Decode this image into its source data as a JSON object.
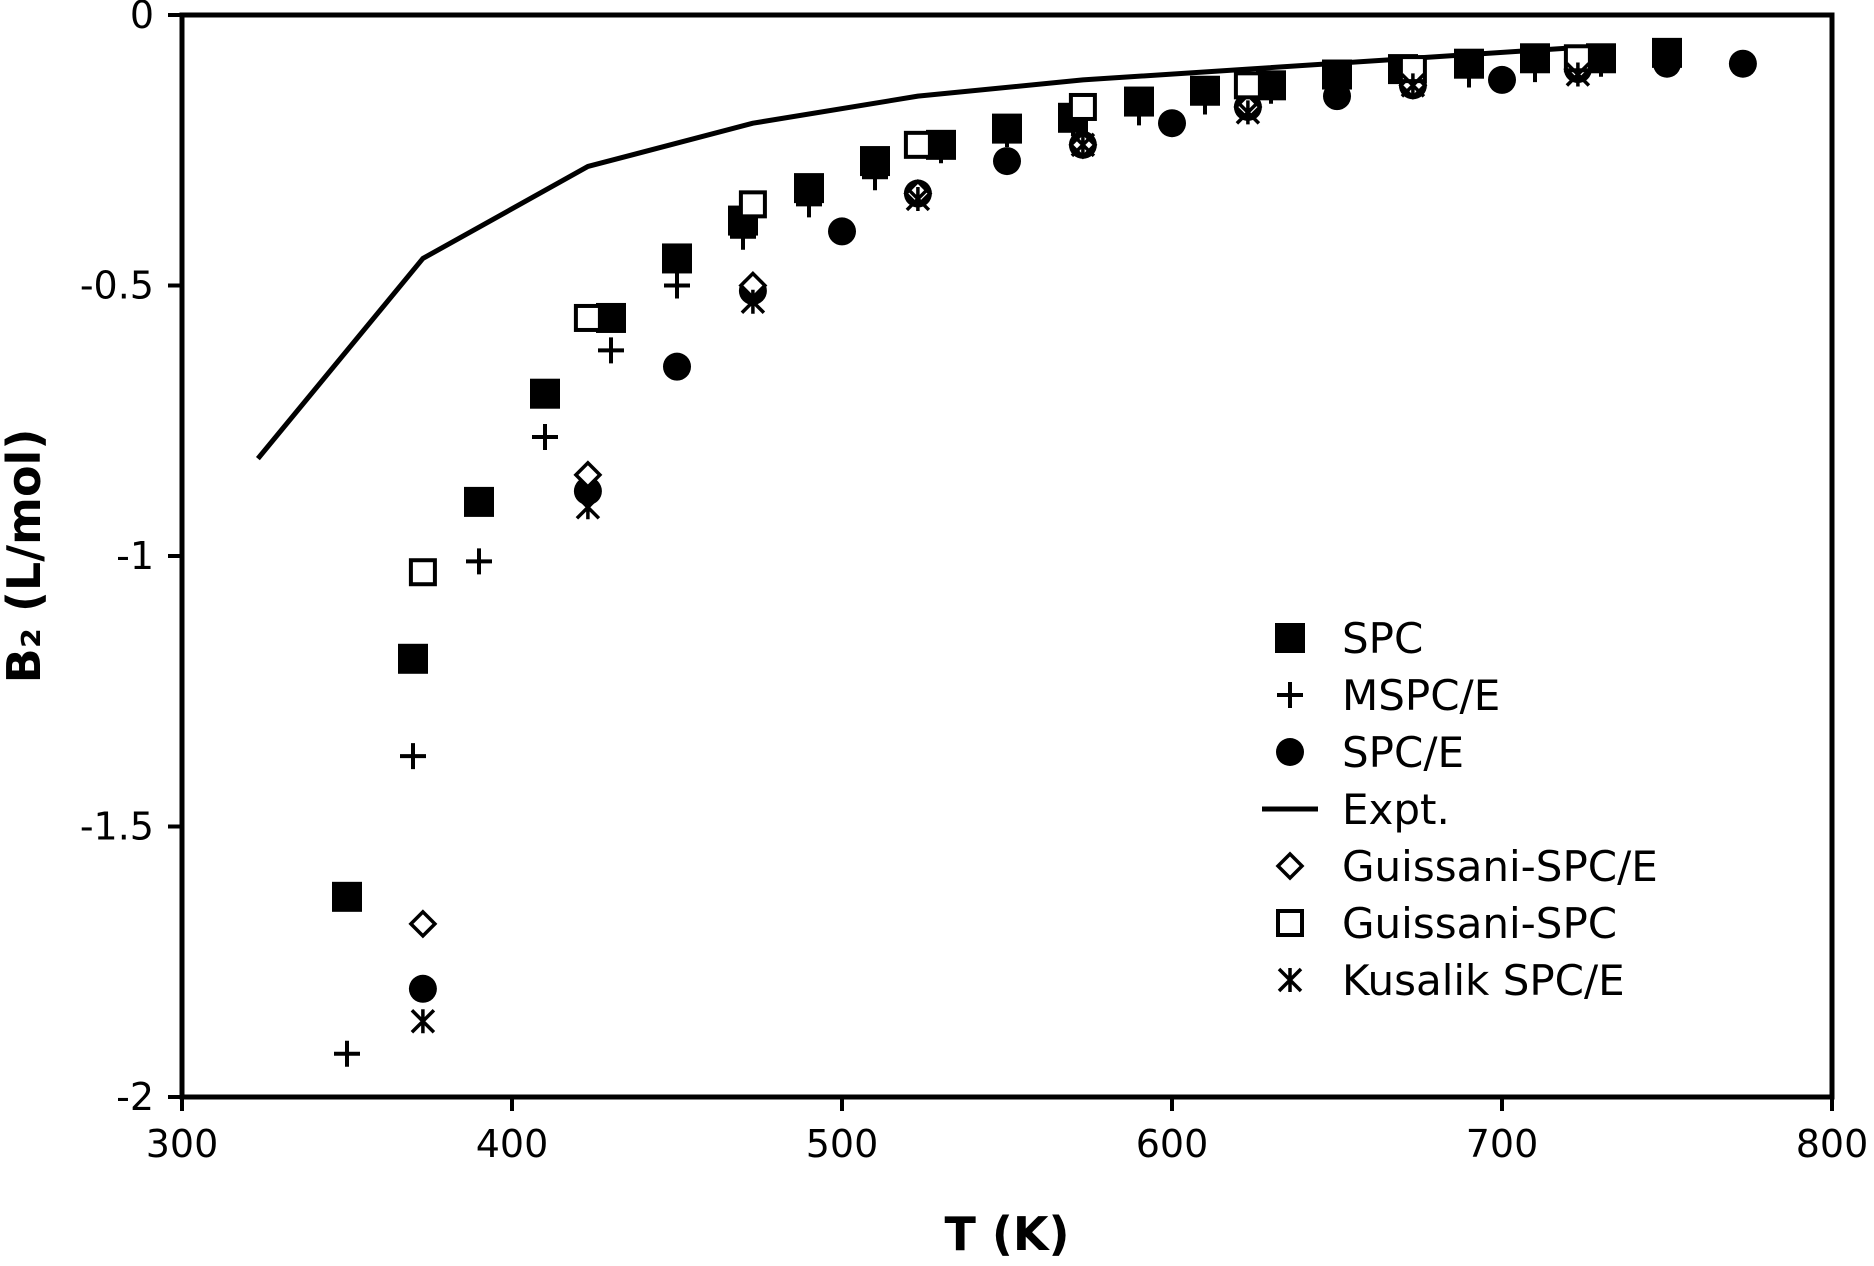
{
  "chart_data": {
    "type": "scatter",
    "xlabel": "T (K)",
    "ylabel": "B₂ (L/mol)",
    "xlim": [
      300,
      800
    ],
    "ylim": [
      -2,
      0
    ],
    "xticks": [
      "300",
      "400",
      "500",
      "600",
      "700",
      "800"
    ],
    "yticks": [
      "0",
      "-0.5",
      "-1",
      "-1.5",
      "-2"
    ],
    "legend_position": "bottom-right",
    "grid": false,
    "series": [
      {
        "name": "SPC",
        "marker": "filled-square",
        "points": [
          [
            350,
            -1.63
          ],
          [
            370,
            -1.19
          ],
          [
            390,
            -0.9
          ],
          [
            410,
            -0.7
          ],
          [
            430,
            -0.56
          ],
          [
            450,
            -0.45
          ],
          [
            470,
            -0.38
          ],
          [
            490,
            -0.32
          ],
          [
            510,
            -0.27
          ],
          [
            530,
            -0.24
          ],
          [
            550,
            -0.21
          ],
          [
            570,
            -0.19
          ],
          [
            590,
            -0.16
          ],
          [
            610,
            -0.14
          ],
          [
            630,
            -0.13
          ],
          [
            650,
            -0.11
          ],
          [
            670,
            -0.1
          ],
          [
            690,
            -0.09
          ],
          [
            710,
            -0.08
          ],
          [
            730,
            -0.08
          ],
          [
            750,
            -0.07
          ]
        ]
      },
      {
        "name": "MSPC/E",
        "marker": "plus",
        "points": [
          [
            350,
            -1.92
          ],
          [
            370,
            -1.37
          ],
          [
            390,
            -1.01
          ],
          [
            410,
            -0.78
          ],
          [
            430,
            -0.62
          ],
          [
            450,
            -0.5
          ],
          [
            470,
            -0.41
          ],
          [
            490,
            -0.35
          ],
          [
            510,
            -0.3
          ],
          [
            530,
            -0.25
          ],
          [
            550,
            -0.22
          ],
          [
            570,
            -0.2
          ],
          [
            590,
            -0.18
          ],
          [
            610,
            -0.16
          ],
          [
            630,
            -0.14
          ],
          [
            650,
            -0.13
          ],
          [
            670,
            -0.12
          ],
          [
            690,
            -0.11
          ],
          [
            710,
            -0.1
          ],
          [
            730,
            -0.09
          ],
          [
            750,
            -0.09
          ]
        ]
      },
      {
        "name": "SPC/E",
        "marker": "filled-circle",
        "points": [
          [
            373,
            -1.8
          ],
          [
            423,
            -0.88
          ],
          [
            450,
            -0.65
          ],
          [
            473,
            -0.51
          ],
          [
            500,
            -0.4
          ],
          [
            523,
            -0.33
          ],
          [
            550,
            -0.27
          ],
          [
            573,
            -0.24
          ],
          [
            600,
            -0.2
          ],
          [
            623,
            -0.17
          ],
          [
            650,
            -0.15
          ],
          [
            673,
            -0.13
          ],
          [
            700,
            -0.12
          ],
          [
            723,
            -0.1
          ],
          [
            750,
            -0.09
          ],
          [
            773,
            -0.09
          ]
        ]
      },
      {
        "name": "Expt.",
        "marker": "line",
        "points": [
          [
            323,
            -0.82
          ],
          [
            373,
            -0.45
          ],
          [
            423,
            -0.28
          ],
          [
            473,
            -0.2
          ],
          [
            523,
            -0.15
          ],
          [
            573,
            -0.12
          ],
          [
            623,
            -0.1
          ],
          [
            673,
            -0.08
          ],
          [
            723,
            -0.06
          ]
        ]
      },
      {
        "name": "Guissani-SPC/E",
        "marker": "open-diamond",
        "points": [
          [
            373,
            -1.68
          ],
          [
            423,
            -0.85
          ],
          [
            473,
            -0.5
          ],
          [
            523,
            -0.33
          ],
          [
            573,
            -0.24
          ],
          [
            623,
            -0.17
          ],
          [
            673,
            -0.13
          ],
          [
            723,
            -0.1
          ]
        ]
      },
      {
        "name": "Guissani-SPC",
        "marker": "open-square",
        "points": [
          [
            373,
            -1.03
          ],
          [
            423,
            -0.56
          ],
          [
            473,
            -0.35
          ],
          [
            523,
            -0.24
          ],
          [
            573,
            -0.17
          ],
          [
            623,
            -0.13
          ],
          [
            673,
            -0.1
          ],
          [
            723,
            -0.08
          ]
        ]
      },
      {
        "name": "Kusalik SPC/E",
        "marker": "asterisk",
        "points": [
          [
            373,
            -1.86
          ],
          [
            423,
            -0.91
          ],
          [
            473,
            -0.53
          ],
          [
            523,
            -0.34
          ],
          [
            573,
            -0.24
          ],
          [
            623,
            -0.18
          ],
          [
            673,
            -0.13
          ],
          [
            723,
            -0.11
          ]
        ]
      }
    ]
  }
}
